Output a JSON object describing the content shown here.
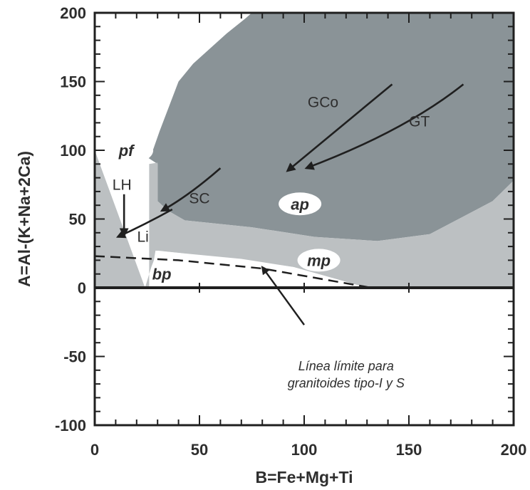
{
  "chart_data": {
    "type": "diagram",
    "xlabel": "B=Fe+Mg+Ti",
    "ylabel": "A=Al-(K+Na+2Ca)",
    "xlim": [
      0,
      200
    ],
    "ylim": [
      -100,
      200
    ],
    "x_ticks": [
      "0",
      "50",
      "100",
      "150",
      "200"
    ],
    "y_ticks": [
      "200",
      "150",
      "100",
      "50",
      "0",
      "-50",
      "-100"
    ],
    "x_tick_values": [
      0,
      50,
      100,
      150,
      200
    ],
    "y_tick_values": [
      200,
      150,
      100,
      50,
      0,
      -50,
      -100
    ],
    "regions": [
      {
        "label": "ap",
        "label_pos": [
          98,
          61
        ],
        "color": "#8a9397",
        "polygon": [
          [
            24,
            96
          ],
          [
            28,
            101
          ],
          [
            31,
            114
          ],
          [
            40,
            150
          ],
          [
            47,
            163
          ],
          [
            63,
            185
          ],
          [
            72,
            196
          ],
          [
            75,
            200
          ],
          [
            200,
            200
          ],
          [
            200,
            78
          ],
          [
            190,
            63
          ],
          [
            175,
            51
          ],
          [
            160,
            39
          ],
          [
            135,
            34
          ],
          [
            105,
            37
          ],
          [
            75,
            44
          ],
          [
            43,
            49
          ],
          [
            35,
            56
          ],
          [
            30,
            63
          ],
          [
            30,
            90
          ]
        ]
      },
      {
        "label": "mp",
        "label_pos": [
          107,
          20
        ],
        "color": "#bcc0c2",
        "polygon": [
          [
            0,
            100
          ],
          [
            0,
            0
          ],
          [
            26,
            0
          ],
          [
            26,
            90
          ],
          [
            30,
            91
          ],
          [
            30,
            63
          ],
          [
            35,
            56
          ],
          [
            43,
            49
          ],
          [
            75,
            44
          ],
          [
            105,
            37
          ],
          [
            135,
            34
          ],
          [
            160,
            39
          ],
          [
            175,
            51
          ],
          [
            190,
            63
          ],
          [
            200,
            78
          ],
          [
            200,
            0
          ],
          [
            130,
            0
          ],
          [
            95,
            15
          ],
          [
            72,
            20
          ],
          [
            30,
            27
          ],
          [
            27,
            15
          ],
          [
            24,
            0
          ]
        ]
      },
      {
        "label": "bp",
        "label_pos": [
          32,
          10
        ],
        "color": "#ffffff",
        "polygon": [
          [
            26,
            0
          ],
          [
            29,
            27
          ],
          [
            70,
            21
          ],
          [
            95,
            15
          ],
          [
            130,
            0
          ]
        ]
      },
      {
        "label": "pf",
        "label_pos": [
          15,
          100
        ],
        "color": "#ffffff"
      }
    ],
    "series": [
      {
        "name": "GCo",
        "label_pos": [
          109,
          135
        ],
        "x": [
          142,
          122,
          92
        ],
        "y": [
          148,
          123,
          85
        ]
      },
      {
        "name": "GT",
        "label_pos": [
          155,
          121
        ],
        "x": [
          176,
          148,
          101
        ],
        "y": [
          148,
          114,
          87
        ]
      },
      {
        "name": "SC",
        "label_pos": [
          50,
          65
        ],
        "x": [
          60,
          45,
          32
        ],
        "y": [
          87,
          67,
          56
        ]
      },
      {
        "name": "Li",
        "label_pos": [
          23,
          37
        ],
        "x": [
          37,
          24,
          11
        ],
        "y": [
          57,
          46,
          37
        ]
      },
      {
        "name": "LH",
        "label_pos": [
          13,
          75
        ],
        "x": [
          14,
          14
        ],
        "y": [
          68,
          38
        ]
      }
    ],
    "boundary_line": {
      "x": [
        0,
        40,
        80,
        132
      ],
      "y": [
        23,
        20,
        14,
        0
      ],
      "dash": true
    },
    "annotation": {
      "lines": [
        "Línea límite para",
        "granitoides tipo-I y S"
      ],
      "text_pos": [
        120,
        -60
      ],
      "arrow_from": [
        100,
        -27
      ],
      "arrow_to": [
        80,
        15
      ]
    }
  }
}
